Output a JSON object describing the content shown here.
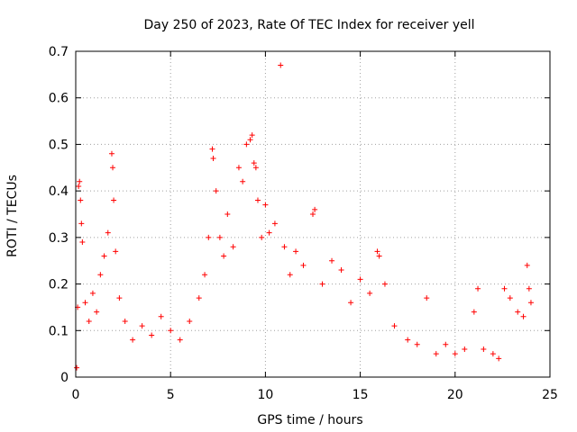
{
  "chart_data": {
    "type": "scatter",
    "title": "Day 250 of 2023, Rate Of TEC Index for receiver yell",
    "xlabel": "GPS time / hours",
    "ylabel": "ROTI / TECUs",
    "xlim": [
      0,
      25
    ],
    "ylim": [
      0,
      0.7
    ],
    "x_ticks": [
      "0",
      "5",
      "10",
      "15",
      "20",
      "25"
    ],
    "y_ticks": [
      "0",
      "0.1",
      "0.2",
      "0.3",
      "0.4",
      "0.5",
      "0.6",
      "0.7"
    ],
    "grid": true,
    "marker": "plus",
    "color": "#ff0000",
    "series": [
      {
        "points": [
          [
            0.05,
            0.02
          ],
          [
            0.1,
            0.15
          ],
          [
            0.15,
            0.41
          ],
          [
            0.2,
            0.42
          ],
          [
            0.25,
            0.38
          ],
          [
            0.3,
            0.33
          ],
          [
            0.35,
            0.29
          ],
          [
            0.5,
            0.16
          ],
          [
            0.7,
            0.12
          ],
          [
            0.9,
            0.18
          ],
          [
            1.1,
            0.14
          ],
          [
            1.3,
            0.22
          ],
          [
            1.5,
            0.26
          ],
          [
            1.7,
            0.31
          ],
          [
            1.9,
            0.48
          ],
          [
            1.95,
            0.45
          ],
          [
            2.0,
            0.38
          ],
          [
            2.1,
            0.27
          ],
          [
            2.3,
            0.17
          ],
          [
            2.6,
            0.12
          ],
          [
            3.0,
            0.08
          ],
          [
            3.5,
            0.11
          ],
          [
            4.0,
            0.09
          ],
          [
            4.5,
            0.13
          ],
          [
            5.0,
            0.1
          ],
          [
            5.5,
            0.08
          ],
          [
            6.0,
            0.12
          ],
          [
            6.5,
            0.17
          ],
          [
            6.8,
            0.22
          ],
          [
            7.0,
            0.3
          ],
          [
            7.2,
            0.49
          ],
          [
            7.25,
            0.47
          ],
          [
            7.4,
            0.4
          ],
          [
            7.6,
            0.3
          ],
          [
            7.8,
            0.26
          ],
          [
            8.0,
            0.35
          ],
          [
            8.3,
            0.28
          ],
          [
            8.6,
            0.45
          ],
          [
            8.8,
            0.42
          ],
          [
            9.0,
            0.5
          ],
          [
            9.2,
            0.51
          ],
          [
            9.3,
            0.52
          ],
          [
            9.4,
            0.46
          ],
          [
            9.5,
            0.45
          ],
          [
            9.6,
            0.38
          ],
          [
            9.8,
            0.3
          ],
          [
            10.0,
            0.37
          ],
          [
            10.2,
            0.31
          ],
          [
            10.5,
            0.33
          ],
          [
            10.8,
            0.67
          ],
          [
            11.0,
            0.28
          ],
          [
            11.3,
            0.22
          ],
          [
            11.6,
            0.27
          ],
          [
            12.0,
            0.24
          ],
          [
            12.5,
            0.35
          ],
          [
            12.6,
            0.36
          ],
          [
            13.0,
            0.2
          ],
          [
            13.5,
            0.25
          ],
          [
            14.0,
            0.23
          ],
          [
            14.5,
            0.16
          ],
          [
            15.0,
            0.21
          ],
          [
            15.5,
            0.18
          ],
          [
            15.9,
            0.27
          ],
          [
            16.0,
            0.26
          ],
          [
            16.3,
            0.2
          ],
          [
            16.8,
            0.11
          ],
          [
            17.5,
            0.08
          ],
          [
            18.0,
            0.07
          ],
          [
            18.5,
            0.17
          ],
          [
            19.0,
            0.05
          ],
          [
            19.5,
            0.07
          ],
          [
            20.0,
            0.05
          ],
          [
            20.5,
            0.06
          ],
          [
            21.0,
            0.14
          ],
          [
            21.2,
            0.19
          ],
          [
            21.5,
            0.06
          ],
          [
            22.0,
            0.05
          ],
          [
            22.3,
            0.04
          ],
          [
            22.6,
            0.19
          ],
          [
            22.9,
            0.17
          ],
          [
            23.3,
            0.14
          ],
          [
            23.6,
            0.13
          ],
          [
            23.8,
            0.24
          ],
          [
            23.9,
            0.19
          ],
          [
            24.0,
            0.16
          ]
        ]
      }
    ]
  }
}
